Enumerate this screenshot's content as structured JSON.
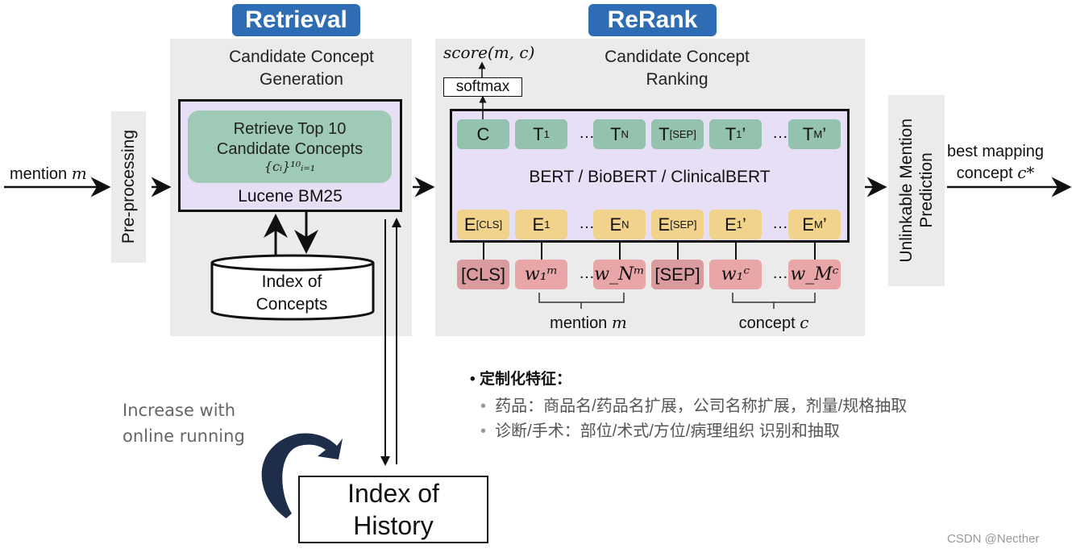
{
  "badges": {
    "retrieval": "Retrieval",
    "rerank": "ReRank"
  },
  "retrieval": {
    "title_line1": "Candidate Concept",
    "title_line2": "Generation",
    "retrieve_line1": "Retrieve Top 10",
    "retrieve_line2": "Candidate Concepts",
    "retrieve_formula": "{cᵢ}¹⁰ᵢ₌₁",
    "engine": "Lucene BM25",
    "index_line1": "Index of",
    "index_line2": "Concepts"
  },
  "input": {
    "mention_label": "mention",
    "mention_var": "m",
    "preprocessing": "Pre-processing"
  },
  "rerank": {
    "title_line1": "Candidate Concept",
    "title_line2": "Ranking",
    "score": "score(m, c)",
    "softmax": "softmax",
    "model": "BERT / BioBERT / ClinicalBERT",
    "outputs": [
      {
        "main": "C",
        "sub": ""
      },
      {
        "main": "T",
        "sub": "1"
      },
      {
        "main": "T",
        "sub": "N"
      },
      {
        "main": "T",
        "sub": "[SEP]"
      },
      {
        "main": "T",
        "sub": "1",
        "prime": "’"
      },
      {
        "main": "T",
        "sub": "M",
        "prime": "’"
      }
    ],
    "embeddings": [
      {
        "main": "E",
        "sub": "[CLS]"
      },
      {
        "main": "E",
        "sub": "1"
      },
      {
        "main": "E",
        "sub": "N"
      },
      {
        "main": "E",
        "sub": "[SEP]"
      },
      {
        "main": "E",
        "sub": "1",
        "prime": "’"
      },
      {
        "main": "E",
        "sub": "M",
        "prime": "’"
      }
    ],
    "inputs": [
      "[CLS]",
      "w₁ᵐ",
      "w_Nᵐ",
      "[SEP]",
      "w₁ᶜ",
      "w_Mᶜ"
    ],
    "ellipsis": "…",
    "mention_group": "mention",
    "mention_var": "m",
    "concept_group": "concept",
    "concept_var": "c"
  },
  "unlinkable": {
    "line1": "Unlinkable Mention",
    "line2": "Prediction"
  },
  "output": {
    "line1": "best mapping",
    "line2": "concept",
    "var": "c*"
  },
  "history": {
    "line1": "Index of",
    "line2": "History",
    "increase_line1": "Increase with",
    "increase_line2": "online running"
  },
  "features": {
    "heading": "定制化特征：",
    "items": [
      "药品：商品名/药品名扩展，公司名称扩展，剂量/规格抽取",
      "诊断/手术：部位/术式/方位/病理组织 识别和抽取"
    ]
  },
  "watermark": "CSDN @Necther",
  "colors": {
    "badge": "#2e6db4",
    "panel": "#ebebeb",
    "model_box": "#e6dff5",
    "output_token": "#93c2ae",
    "embedding_token": "#f1d38b",
    "input_token": "#e8a6a8",
    "curved_arrow": "#1e2d4a"
  }
}
